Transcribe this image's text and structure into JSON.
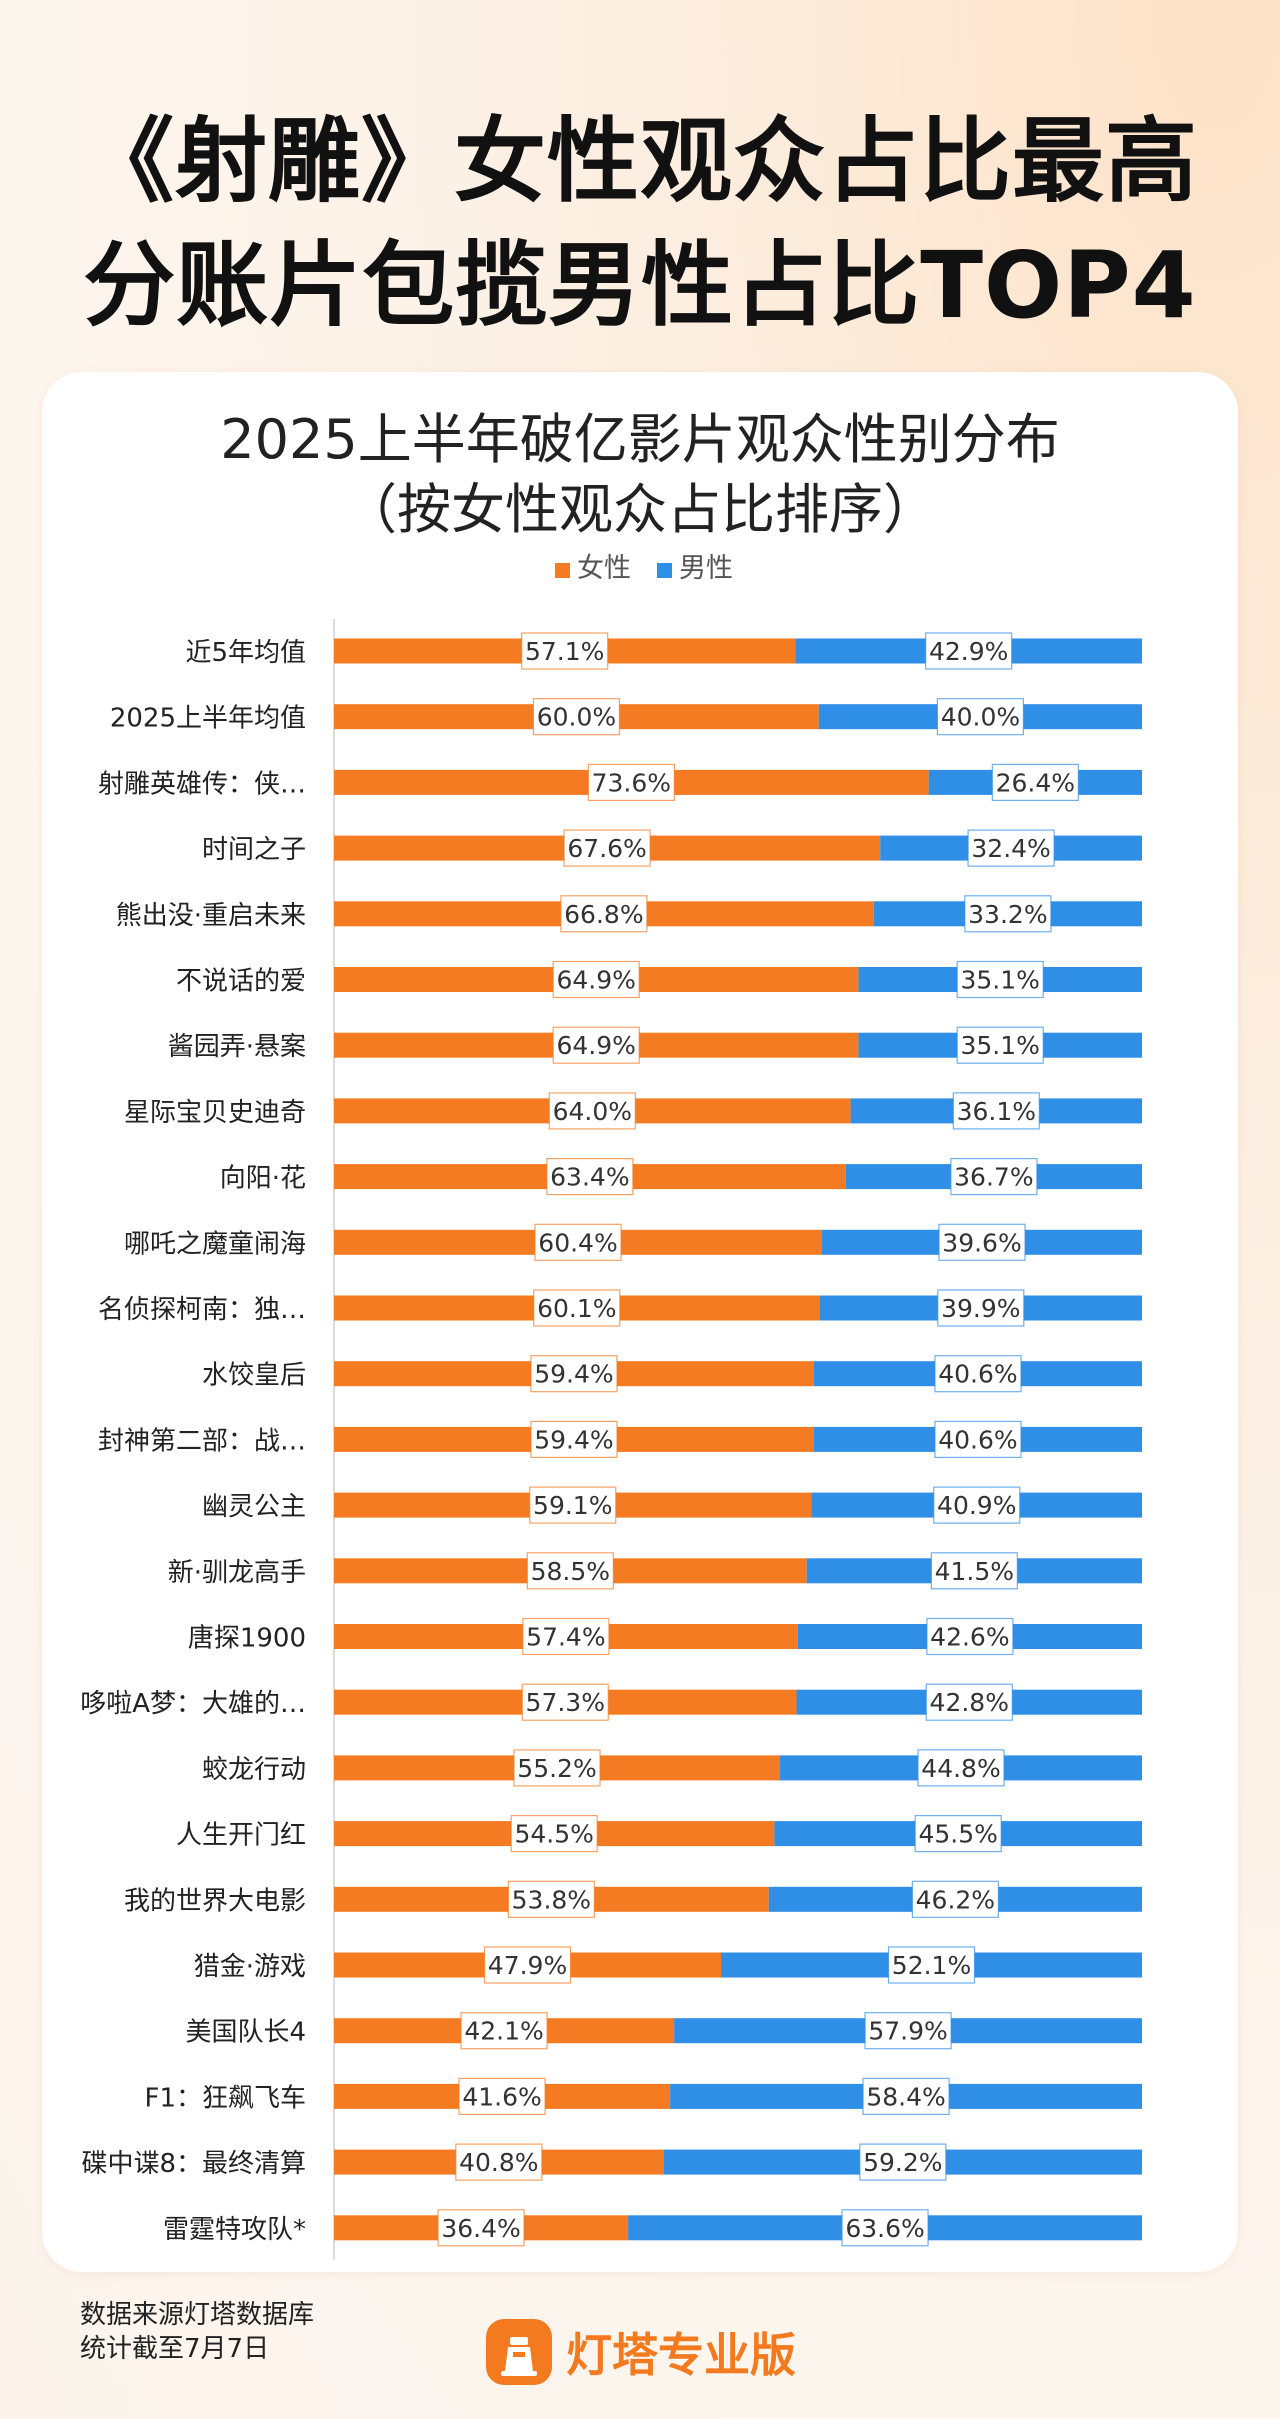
{
  "headline": {
    "line1": "《射雕》女性观众占比最高",
    "line2": "分账片包揽男性占比TOP4"
  },
  "colors": {
    "female": "#f47b22",
    "male": "#2f8ee6",
    "accent": "#f47a1f"
  },
  "chart_data": {
    "type": "bar",
    "stacked": "100%",
    "orientation": "horizontal",
    "title": "2025上半年破亿影片观众性别分布",
    "subtitle": "（按女性观众占比排序）",
    "legend_position": "top-center",
    "categories": [
      "近5年均值",
      "2025上半年均值",
      "射雕英雄传：侠…",
      "时间之子",
      "熊出没·重启未来",
      "不说话的爱",
      "酱园弄·悬案",
      "星际宝贝史迪奇",
      "向阳·花",
      "哪吒之魔童闹海",
      "名侦探柯南：独…",
      "水饺皇后",
      "封神第二部：战…",
      "幽灵公主",
      "新·驯龙高手",
      "唐探1900",
      "哆啦A梦：大雄的…",
      "蛟龙行动",
      "人生开门红",
      "我的世界大电影",
      "猎金·游戏",
      "美国队长4",
      "F1：狂飙飞车",
      "碟中谍8：最终清算",
      "雷霆特攻队*"
    ],
    "series": [
      {
        "name": "女性",
        "values": [
          57.1,
          60.0,
          73.6,
          67.6,
          66.8,
          64.9,
          64.9,
          64.0,
          63.4,
          60.4,
          60.1,
          59.4,
          59.4,
          59.1,
          58.5,
          57.4,
          57.3,
          55.2,
          54.5,
          53.8,
          47.9,
          42.1,
          41.6,
          40.8,
          36.4
        ],
        "labels": [
          "57.1%",
          "60.0%",
          "73.6%",
          "67.6%",
          "66.8%",
          "64.9%",
          "64.9%",
          "64.0%",
          "63.4%",
          "60.4%",
          "60.1%",
          "59.4%",
          "59.4%",
          "59.1%",
          "58.5%",
          "57.4%",
          "57.3%",
          "55.2%",
          "54.5%",
          "53.8%",
          "47.9%",
          "42.1%",
          "41.6%",
          "40.8%",
          "36.4%"
        ]
      },
      {
        "name": "男性",
        "values": [
          42.9,
          40.0,
          26.4,
          32.4,
          33.2,
          35.1,
          35.1,
          36.1,
          36.7,
          39.6,
          39.9,
          40.6,
          40.6,
          40.9,
          41.5,
          42.6,
          42.8,
          44.8,
          45.5,
          46.2,
          52.1,
          57.9,
          58.4,
          59.2,
          63.6
        ],
        "labels": [
          "42.9%",
          "40.0%",
          "26.4%",
          "32.4%",
          "33.2%",
          "35.1%",
          "35.1%",
          "36.1%",
          "36.7%",
          "39.6%",
          "39.9%",
          "40.6%",
          "40.6%",
          "40.9%",
          "41.5%",
          "42.6%",
          "42.8%",
          "44.8%",
          "45.5%",
          "46.2%",
          "52.1%",
          "57.9%",
          "58.4%",
          "59.2%",
          "63.6%"
        ]
      }
    ],
    "xlim": [
      0,
      100
    ]
  },
  "footer": {
    "source": "数据来源灯塔数据库",
    "cutoff": "统计截至7月7日",
    "brand": "灯塔专业版"
  }
}
